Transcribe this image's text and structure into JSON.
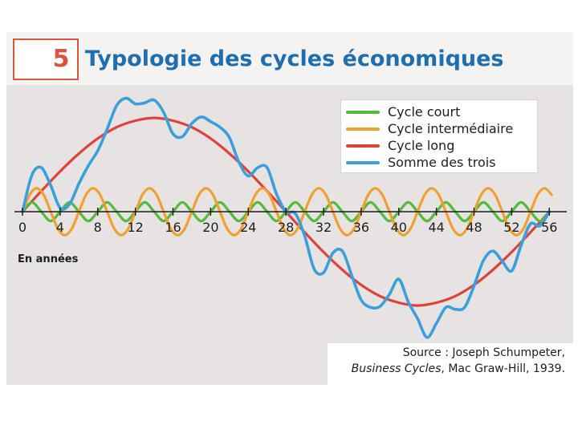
{
  "header": {
    "figure_number": "5",
    "title": "Typologie des cycles économiques"
  },
  "chart_data": {
    "type": "line",
    "title": "Typologie des cycles économiques",
    "xlabel": "En années",
    "ylabel": "",
    "xlim": [
      0,
      57
    ],
    "ylim": [
      -1.45,
      1.45
    ],
    "x_ticks": [
      0,
      4,
      8,
      12,
      16,
      20,
      24,
      28,
      32,
      36,
      40,
      44,
      48,
      52,
      56
    ],
    "grid": false,
    "legend_position": "top-right",
    "series": [
      {
        "name": "Cycle court",
        "color": "#55bb3c",
        "x": [
          0,
          1,
          2,
          3,
          4,
          5,
          6,
          7,
          8,
          9,
          10,
          11,
          12,
          13,
          14,
          15,
          16,
          17,
          18,
          19,
          20,
          21,
          22,
          23,
          24,
          25,
          26,
          27,
          28,
          29,
          30,
          31,
          32,
          33,
          34,
          35,
          36,
          37,
          38,
          39,
          40,
          41,
          42,
          43,
          44,
          45,
          46,
          47,
          48,
          49,
          50,
          51,
          52,
          53,
          54,
          55,
          56
        ],
        "values": [
          0.0,
          0.1,
          0.0,
          -0.1,
          0.0,
          0.1,
          0.0,
          -0.1,
          0.0,
          0.1,
          0.0,
          -0.1,
          0.0,
          0.1,
          0.0,
          -0.1,
          0.0,
          0.1,
          0.0,
          -0.1,
          0.0,
          0.1,
          0.0,
          -0.1,
          0.0,
          0.1,
          0.0,
          -0.1,
          0.0,
          0.1,
          0.0,
          -0.1,
          0.0,
          0.1,
          0.0,
          -0.1,
          0.0,
          0.1,
          0.0,
          -0.1,
          0.0,
          0.1,
          0.0,
          -0.1,
          0.0,
          0.1,
          0.0,
          -0.1,
          0.0,
          0.1,
          0.0,
          -0.1,
          0.0,
          0.1,
          0.0,
          -0.1,
          0.0
        ]
      },
      {
        "name": "Cycle intermédiaire",
        "color": "#f0a02e",
        "x": [
          0,
          0.75,
          1.5,
          2.25,
          3,
          3.75,
          4.5,
          5.25,
          6,
          6.75,
          7.5,
          8.25,
          9,
          9.75,
          10.5,
          11.25,
          12,
          12.75,
          13.5,
          14.25,
          15,
          15.75,
          16.5,
          17.25,
          18,
          18.75,
          19.5,
          20.25,
          21,
          21.75,
          22.5,
          23.25,
          24,
          24.75,
          25.5,
          26.25,
          27,
          27.75,
          28.5,
          29.25,
          30,
          30.75,
          31.5,
          32.25,
          33,
          33.75,
          34.5,
          35.25,
          36,
          36.75,
          37.5,
          38.25,
          39,
          39.75,
          40.5,
          41.25,
          42,
          42.75,
          43.5,
          44.25,
          45,
          45.75,
          46.5,
          47.25,
          48,
          48.75,
          49.5,
          50.25,
          51,
          51.75,
          52.5,
          53.25,
          54,
          54.75,
          55.5,
          56.25
        ],
        "values": [
          0.0,
          0.18,
          0.25,
          0.18,
          0.0,
          -0.18,
          -0.25,
          -0.18,
          0.0,
          0.18,
          0.25,
          0.18,
          0.0,
          -0.18,
          -0.25,
          -0.18,
          0.0,
          0.18,
          0.25,
          0.18,
          0.0,
          -0.18,
          -0.25,
          -0.18,
          0.0,
          0.18,
          0.25,
          0.18,
          0.0,
          -0.18,
          -0.25,
          -0.18,
          0.0,
          0.18,
          0.25,
          0.18,
          0.0,
          -0.18,
          -0.25,
          -0.18,
          0.0,
          0.18,
          0.25,
          0.18,
          0.0,
          -0.18,
          -0.25,
          -0.18,
          0.0,
          0.18,
          0.25,
          0.18,
          0.0,
          -0.18,
          -0.25,
          -0.18,
          0.0,
          0.18,
          0.25,
          0.18,
          0.0,
          -0.18,
          -0.25,
          -0.18,
          0.0,
          0.18,
          0.25,
          0.18,
          0.0,
          -0.18,
          -0.25,
          -0.18,
          0.0,
          0.18,
          0.25,
          0.18
        ]
      },
      {
        "name": "Cycle long",
        "color": "#e0423a",
        "x": [
          0,
          2,
          4,
          6,
          8,
          10,
          12,
          14,
          16,
          18,
          20,
          22,
          24,
          26,
          28,
          30,
          32,
          34,
          36,
          38,
          40,
          42,
          44,
          46,
          48,
          50,
          52,
          54,
          56
        ],
        "values": [
          0.0,
          0.22,
          0.43,
          0.62,
          0.78,
          0.9,
          0.97,
          1.0,
          0.97,
          0.9,
          0.78,
          0.62,
          0.43,
          0.22,
          0.0,
          -0.22,
          -0.43,
          -0.62,
          -0.78,
          -0.9,
          -0.97,
          -1.0,
          -0.97,
          -0.9,
          -0.78,
          -0.62,
          -0.43,
          -0.22,
          0.0
        ]
      },
      {
        "name": "Somme des trois",
        "color": "#3b9fdc",
        "x": [
          0,
          1,
          2,
          3,
          4,
          5,
          6,
          7,
          8,
          9,
          10,
          11,
          12,
          13,
          14,
          15,
          16,
          17,
          18,
          19,
          20,
          21,
          22,
          23,
          24,
          25,
          26,
          27,
          28,
          29,
          30,
          31,
          32,
          33,
          34,
          35,
          36,
          37,
          38,
          39,
          40,
          41,
          42,
          43,
          44,
          45,
          46,
          47,
          48,
          49,
          50,
          51,
          52,
          53,
          54,
          55,
          56
        ],
        "values": [
          0.0,
          0.39,
          0.47,
          0.28,
          0.04,
          0.08,
          0.3,
          0.49,
          0.65,
          0.88,
          1.13,
          1.21,
          1.15,
          1.16,
          1.19,
          1.06,
          0.83,
          0.8,
          0.94,
          1.01,
          0.96,
          0.9,
          0.79,
          0.53,
          0.38,
          0.47,
          0.47,
          0.19,
          0.0,
          -0.02,
          -0.26,
          -0.61,
          -0.65,
          -0.44,
          -0.42,
          -0.68,
          -0.94,
          -1.02,
          -1.01,
          -0.88,
          -0.72,
          -0.96,
          -1.14,
          -1.34,
          -1.19,
          -1.02,
          -1.04,
          -1.02,
          -0.79,
          -0.52,
          -0.42,
          -0.53,
          -0.63,
          -0.36,
          -0.13,
          -0.15,
          0.0
        ]
      }
    ],
    "source": {
      "line1": "Source : Joseph Schumpeter,",
      "line2_title": "Business Cycles",
      "line2_rest": ", Mac Graw-Hill, 1939."
    }
  }
}
